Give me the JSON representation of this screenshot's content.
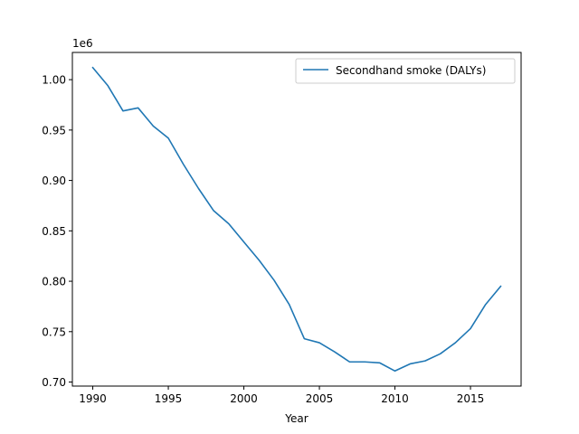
{
  "chart_data": {
    "type": "line",
    "title": "",
    "xlabel": "Year",
    "ylabel": "",
    "y_scale_label": "1e6",
    "xlim": [
      1988.65,
      2018.35
    ],
    "ylim": [
      0.696,
      1.027
    ],
    "xticks": [
      1990,
      1995,
      2000,
      2005,
      2010,
      2015
    ],
    "xtick_labels": [
      "1990",
      "1995",
      "2000",
      "2005",
      "2010",
      "2015"
    ],
    "yticks": [
      0.7,
      0.75,
      0.8,
      0.85,
      0.9,
      0.95,
      1.0
    ],
    "ytick_labels": [
      "0.70",
      "0.75",
      "0.80",
      "0.85",
      "0.90",
      "0.95",
      "1.00"
    ],
    "grid": false,
    "legend_position": "top-right",
    "series": [
      {
        "name": "Secondhand smoke (DALYs)",
        "color": "#1f77b4",
        "x": [
          1990,
          1991,
          1992,
          1993,
          1994,
          1995,
          1996,
          1997,
          1998,
          1999,
          2000,
          2001,
          2002,
          2003,
          2004,
          2005,
          2006,
          2007,
          2008,
          2009,
          2010,
          2011,
          2012,
          2013,
          2014,
          2015,
          2016,
          2017
        ],
        "values": [
          1.012,
          0.994,
          0.969,
          0.972,
          0.954,
          0.942,
          0.916,
          0.892,
          0.87,
          0.857,
          0.839,
          0.821,
          0.801,
          0.777,
          0.743,
          0.739,
          0.73,
          0.72,
          0.72,
          0.719,
          0.711,
          0.718,
          0.721,
          0.728,
          0.739,
          0.753,
          0.777,
          0.795
        ]
      }
    ]
  }
}
